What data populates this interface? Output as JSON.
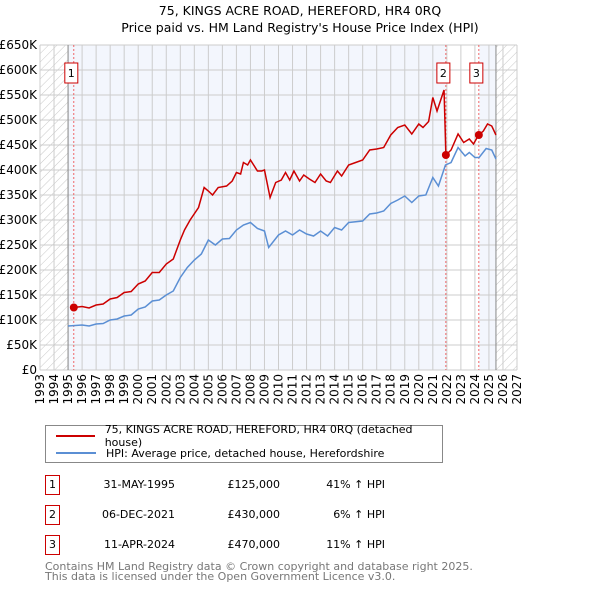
{
  "chart_data": {
    "type": "line",
    "title": "75, KINGS ACRE ROAD, HEREFORD, HR4 0RQ",
    "subtitle": "Price paid vs. HM Land Registry's House Price Index (HPI)",
    "xlim": [
      1993,
      2027
    ],
    "ylim": [
      0,
      650000
    ],
    "y_ticks": [
      "£0",
      "£50K",
      "£100K",
      "£150K",
      "£200K",
      "£250K",
      "£300K",
      "£350K",
      "£400K",
      "£450K",
      "£500K",
      "£550K",
      "£600K",
      "£650K"
    ],
    "x_ticks": [
      "1993",
      "1994",
      "1995",
      "1996",
      "1997",
      "1998",
      "1999",
      "2000",
      "2001",
      "2002",
      "2003",
      "2004",
      "2005",
      "2006",
      "2007",
      "2008",
      "2009",
      "2010",
      "2011",
      "2012",
      "2013",
      "2014",
      "2015",
      "2016",
      "2017",
      "2018",
      "2019",
      "2020",
      "2021",
      "2022",
      "2023",
      "2024",
      "2025",
      "2026",
      "2027"
    ],
    "grid": true,
    "data_range": [
      1995.0,
      2025.5
    ],
    "series": [
      {
        "name": "75, KINGS ACRE ROAD, HEREFORD, HR4 0RQ (detached house)",
        "color": "#cc0000",
        "points": [
          [
            1995.4,
            125
          ],
          [
            1996,
            127
          ],
          [
            1996.5,
            124
          ],
          [
            1997,
            130
          ],
          [
            1997.5,
            132
          ],
          [
            1998,
            142
          ],
          [
            1998.5,
            145
          ],
          [
            1999,
            155
          ],
          [
            1999.5,
            157
          ],
          [
            2000,
            172
          ],
          [
            2000.5,
            178
          ],
          [
            2001,
            195
          ],
          [
            2001.5,
            195
          ],
          [
            2002,
            212
          ],
          [
            2002.5,
            222
          ],
          [
            2003,
            260
          ],
          [
            2003.3,
            280
          ],
          [
            2003.7,
            300
          ],
          [
            2004.3,
            325
          ],
          [
            2004.7,
            365
          ],
          [
            2005,
            358
          ],
          [
            2005.3,
            350
          ],
          [
            2005.7,
            365
          ],
          [
            2006.3,
            368
          ],
          [
            2006.7,
            378
          ],
          [
            2007,
            395
          ],
          [
            2007.3,
            392
          ],
          [
            2007.5,
            415
          ],
          [
            2007.8,
            410
          ],
          [
            2008,
            420
          ],
          [
            2008.5,
            398
          ],
          [
            2008.8,
            398
          ],
          [
            2009,
            400
          ],
          [
            2009.4,
            345
          ],
          [
            2009.8,
            375
          ],
          [
            2010.2,
            380
          ],
          [
            2010.5,
            395
          ],
          [
            2010.8,
            380
          ],
          [
            2011.1,
            398
          ],
          [
            2011.5,
            378
          ],
          [
            2011.8,
            390
          ],
          [
            2012.2,
            382
          ],
          [
            2012.6,
            375
          ],
          [
            2013,
            392
          ],
          [
            2013.4,
            378
          ],
          [
            2013.7,
            375
          ],
          [
            2014.2,
            398
          ],
          [
            2014.5,
            388
          ],
          [
            2015,
            410
          ],
          [
            2015.5,
            415
          ],
          [
            2016,
            420
          ],
          [
            2016.5,
            440
          ],
          [
            2017,
            442
          ],
          [
            2017.5,
            445
          ],
          [
            2018,
            470
          ],
          [
            2018.5,
            485
          ],
          [
            2019,
            490
          ],
          [
            2019.5,
            472
          ],
          [
            2020,
            492
          ],
          [
            2020.3,
            485
          ],
          [
            2020.7,
            497
          ],
          [
            2021,
            545
          ],
          [
            2021.3,
            518
          ],
          [
            2021.8,
            560
          ],
          [
            2021.93,
            430
          ],
          [
            2022.3,
            440
          ],
          [
            2022.8,
            472
          ],
          [
            2023.2,
            455
          ],
          [
            2023.6,
            462
          ],
          [
            2023.9,
            452
          ],
          [
            2024.1,
            462
          ],
          [
            2024.28,
            470
          ],
          [
            2024.6,
            478
          ],
          [
            2024.9,
            492
          ],
          [
            2025.2,
            488
          ],
          [
            2025.5,
            470
          ]
        ]
      },
      {
        "name": "HPI: Average price, detached house, Herefordshire",
        "color": "#5b8fd4",
        "points": [
          [
            1995.0,
            88
          ],
          [
            1996,
            90
          ],
          [
            1996.5,
            88
          ],
          [
            1997,
            92
          ],
          [
            1997.5,
            93
          ],
          [
            1998,
            100
          ],
          [
            1998.5,
            102
          ],
          [
            1999,
            108
          ],
          [
            1999.5,
            110
          ],
          [
            2000,
            122
          ],
          [
            2000.5,
            126
          ],
          [
            2001,
            138
          ],
          [
            2001.5,
            140
          ],
          [
            2002,
            150
          ],
          [
            2002.5,
            158
          ],
          [
            2003,
            185
          ],
          [
            2003.5,
            205
          ],
          [
            2004,
            220
          ],
          [
            2004.5,
            232
          ],
          [
            2005,
            260
          ],
          [
            2005.5,
            250
          ],
          [
            2006,
            262
          ],
          [
            2006.5,
            263
          ],
          [
            2007,
            280
          ],
          [
            2007.5,
            290
          ],
          [
            2008,
            295
          ],
          [
            2008.5,
            283
          ],
          [
            2009,
            278
          ],
          [
            2009.3,
            245
          ],
          [
            2010,
            270
          ],
          [
            2010.5,
            278
          ],
          [
            2011,
            270
          ],
          [
            2011.5,
            280
          ],
          [
            2012,
            272
          ],
          [
            2012.5,
            268
          ],
          [
            2013,
            278
          ],
          [
            2013.5,
            268
          ],
          [
            2014,
            285
          ],
          [
            2014.5,
            280
          ],
          [
            2015,
            295
          ],
          [
            2016,
            298
          ],
          [
            2016.5,
            312
          ],
          [
            2017,
            314
          ],
          [
            2017.5,
            318
          ],
          [
            2018,
            333
          ],
          [
            2018.5,
            340
          ],
          [
            2019,
            348
          ],
          [
            2019.5,
            335
          ],
          [
            2020,
            348
          ],
          [
            2020.5,
            350
          ],
          [
            2021,
            385
          ],
          [
            2021.4,
            368
          ],
          [
            2021.9,
            410
          ],
          [
            2022.3,
            415
          ],
          [
            2022.8,
            445
          ],
          [
            2023.3,
            428
          ],
          [
            2023.6,
            435
          ],
          [
            2024,
            425
          ],
          [
            2024.3,
            425
          ],
          [
            2024.8,
            443
          ],
          [
            2025.2,
            440
          ],
          [
            2025.5,
            422
          ]
        ]
      }
    ],
    "sales": [
      {
        "label": "1",
        "x": 1995.41,
        "value": 125000,
        "date": "31-MAY-1995",
        "price": "£125,000",
        "hpi": "41% ↑ HPI"
      },
      {
        "label": "2",
        "x": 2021.93,
        "value": 430000,
        "date": "06-DEC-2021",
        "price": "£430,000",
        "hpi": "6% ↑ HPI"
      },
      {
        "label": "3",
        "x": 2024.28,
        "value": 470000,
        "date": "11-APR-2024",
        "price": "£470,000",
        "hpi": "11% ↑ HPI"
      }
    ],
    "legend_placement": "below"
  },
  "footer": [
    "Contains HM Land Registry data © Crown copyright and database right 2025.",
    "This data is licensed under the Open Government Licence v3.0."
  ]
}
